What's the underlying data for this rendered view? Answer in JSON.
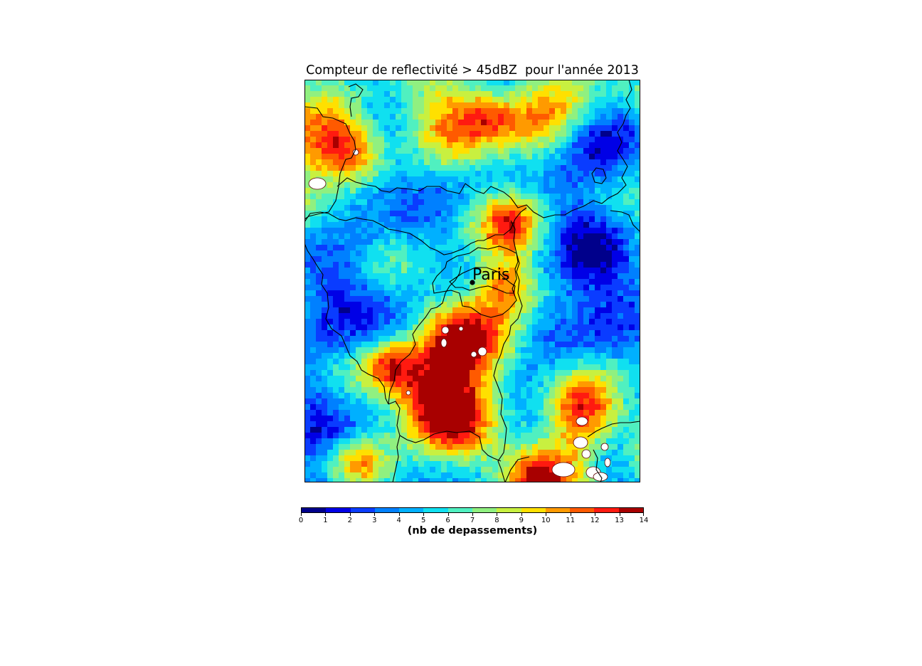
{
  "title": "Compteur de reflectivité > 45dBZ  pour l'année 2013",
  "map": {
    "city": {
      "name": "Paris",
      "marker_icon": "city-dot-icon"
    },
    "field_description_colors": {
      "no_data": "#ffffff",
      "boundary": "#000000"
    }
  },
  "colorbar": {
    "label": "(nb de depassements)",
    "ticks": [
      "0",
      "1",
      "2",
      "3",
      "4",
      "5",
      "6",
      "7",
      "8",
      "9",
      "10",
      "11",
      "12",
      "13",
      "14"
    ],
    "colors": [
      "#00008b",
      "#0000e6",
      "#0a3cff",
      "#0080ff",
      "#00b0ff",
      "#10e0f0",
      "#50f0c0",
      "#90f080",
      "#c8f040",
      "#ffe000",
      "#ff9a00",
      "#ff5a00",
      "#ff1a10",
      "#a80000"
    ]
  }
}
